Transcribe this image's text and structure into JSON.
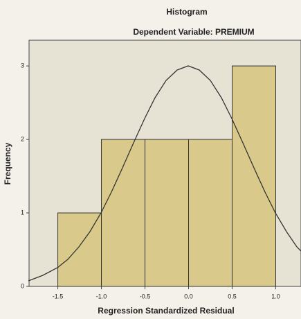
{
  "chart_data": {
    "type": "histogram",
    "title": "Histogram",
    "subtitle": "Dependent Variable: PREMIUM",
    "xlabel": "Regression Standardized Residual",
    "ylabel": "Frequency",
    "bins": [
      -1.5,
      -1.0,
      -0.5,
      0.0,
      0.5,
      1.0
    ],
    "values": [
      1,
      2,
      2,
      2,
      3
    ],
    "color": "#d9c98a",
    "xlim": [
      -1.83,
      1.29
    ],
    "ylim": [
      0,
      3.35
    ],
    "xticks": [
      -1.5,
      {
        "value": -1.0,
        "label": "-1.0"
      },
      -0.5,
      {
        "value": 0.0,
        "label": "0.0"
      },
      0.5,
      {
        "value": 1.0,
        "label": "1.0"
      }
    ],
    "yticks": [
      0,
      1,
      2,
      3
    ]
  }
}
